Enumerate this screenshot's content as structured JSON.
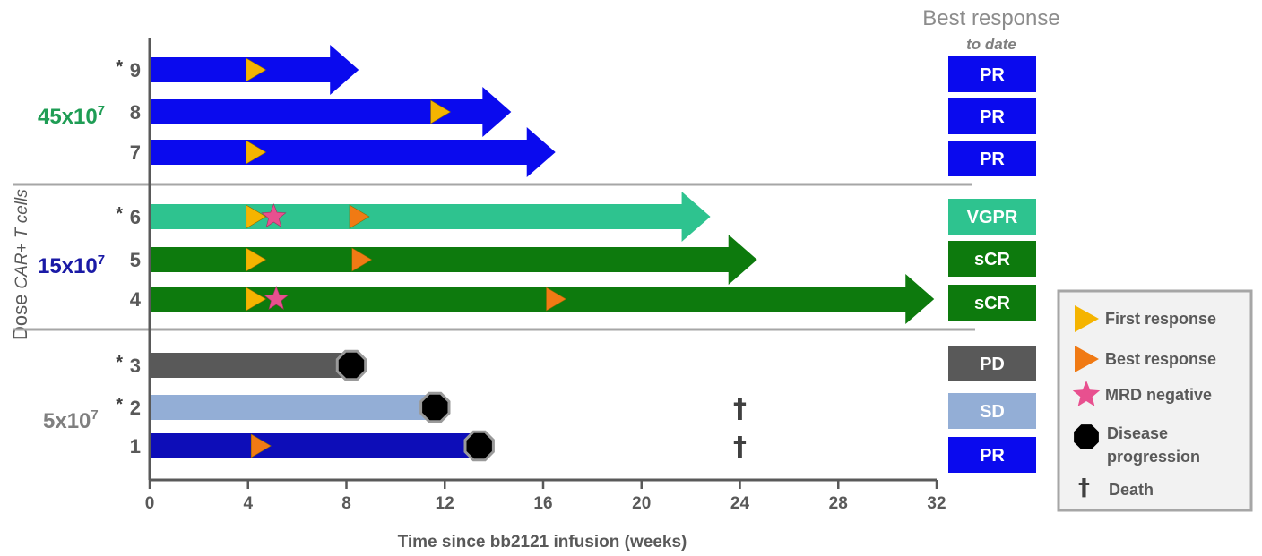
{
  "best_response": {
    "title": "Best response",
    "subtitle": "to date"
  },
  "y_axis": {
    "label_dose": "Dose",
    "label_cells": "CAR+ T cells"
  },
  "groups": [
    {
      "label": "45x10",
      "exp": "7",
      "color": "#1f9d55"
    },
    {
      "label": "15x10",
      "exp": "7",
      "color": "#1a1aa6"
    },
    {
      "label": "5x10",
      "exp": "7",
      "color": "#7f7f7f"
    }
  ],
  "legend": {
    "first_response": "First response",
    "best_response": "Best response",
    "mrd_negative": "MRD negative",
    "disease_line1": "Disease",
    "disease_line2": "progression",
    "death_symbol": "†",
    "death": "Death"
  },
  "colors": {
    "pr": "#0a0aee",
    "vgpr": "#2ec38f",
    "scr": "#0d7a0d",
    "pd": "#595959",
    "sd": "#93aed6",
    "pr_dark": "#0d0db8",
    "first_response": "#f5b400",
    "best_response": "#f07a14",
    "mrd_negative": "#e8508f"
  },
  "chart_data": {
    "type": "bar",
    "xlabel": "Time since bb2121 infusion (weeks)",
    "xlim": [
      0,
      32
    ],
    "x_ticks": [
      "0",
      "4",
      "8",
      "12",
      "16",
      "20",
      "24",
      "28",
      "32"
    ],
    "patients": [
      {
        "id": "9",
        "star": "*",
        "dose_group": 0,
        "end": 8.5,
        "arrow": true,
        "color": "#0a0aee",
        "first_response": 4,
        "best_response": null,
        "mrd_negative": null,
        "progression": null,
        "death": null,
        "best": "PR",
        "best_color": "#0a0aee"
      },
      {
        "id": "8",
        "star": "",
        "dose_group": 0,
        "end": 14.7,
        "arrow": true,
        "color": "#0a0aee",
        "first_response": 11.5,
        "best_response": null,
        "mrd_negative": null,
        "progression": null,
        "death": null,
        "best": "PR",
        "best_color": "#0a0aee"
      },
      {
        "id": "7",
        "star": "",
        "dose_group": 0,
        "end": 16.5,
        "arrow": true,
        "color": "#0a0aee",
        "first_response": 4,
        "best_response": null,
        "mrd_negative": null,
        "progression": null,
        "death": null,
        "best": "PR",
        "best_color": "#0a0aee"
      },
      {
        "id": "6",
        "star": "*",
        "dose_group": 1,
        "end": 22.8,
        "arrow": true,
        "color": "#2ec38f",
        "first_response": 4,
        "best_response": 8.2,
        "mrd_negative": 4.9,
        "progression": null,
        "death": null,
        "best": "VGPR",
        "best_color": "#2ec38f"
      },
      {
        "id": "5",
        "star": "",
        "dose_group": 1,
        "end": 24.7,
        "arrow": true,
        "color": "#0d7a0d",
        "first_response": 4,
        "best_response": 8.3,
        "mrd_negative": null,
        "progression": null,
        "death": null,
        "best": "sCR",
        "best_color": "#0d7a0d"
      },
      {
        "id": "4",
        "star": "",
        "dose_group": 1,
        "end": 31.9,
        "arrow": true,
        "color": "#0d7a0d",
        "first_response": 4,
        "best_response": 16.2,
        "mrd_negative": 5,
        "progression": null,
        "death": null,
        "best": "sCR",
        "best_color": "#0d7a0d"
      },
      {
        "id": "3",
        "star": "*",
        "dose_group": 2,
        "end": 8.2,
        "arrow": false,
        "color": "#595959",
        "first_response": null,
        "best_response": null,
        "mrd_negative": null,
        "progression": 8.2,
        "death": null,
        "best": "PD",
        "best_color": "#595959"
      },
      {
        "id": "2",
        "star": "*",
        "dose_group": 2,
        "end": 11.6,
        "arrow": false,
        "color": "#93aed6",
        "first_response": null,
        "best_response": null,
        "mrd_negative": null,
        "progression": 11.6,
        "death": 24,
        "best": "SD",
        "best_color": "#93aed6"
      },
      {
        "id": "1",
        "star": "",
        "dose_group": 2,
        "end": 13.4,
        "arrow": false,
        "color": "#0d0db8",
        "first_response": null,
        "best_response": 4.2,
        "mrd_negative": null,
        "progression": 13.4,
        "death": 24,
        "best": "PR",
        "best_color": "#0a0aee"
      }
    ]
  }
}
